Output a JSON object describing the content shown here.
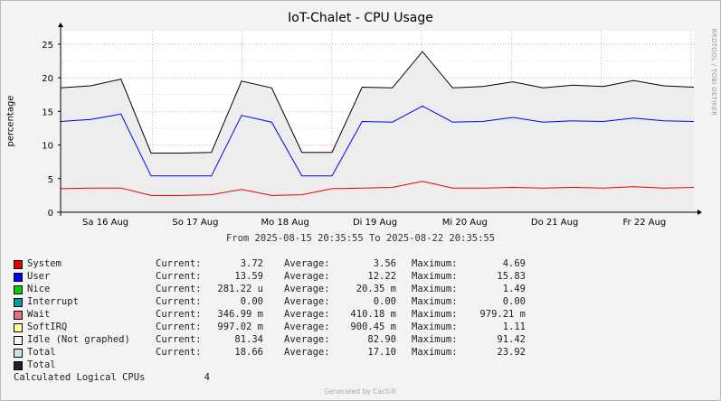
{
  "chart_data": {
    "type": "area",
    "title": "IoT-Chalet - CPU Usage",
    "ylabel": "percentage",
    "ylim": [
      0,
      27
    ],
    "yticks": [
      0,
      5,
      10,
      15,
      20,
      25
    ],
    "x_tick_labels": [
      "Sa 16 Aug",
      "So 17 Aug",
      "Mo 18 Aug",
      "Di 19 Aug",
      "Mi 20 Aug",
      "Do 21 Aug",
      "Fr 22 Aug"
    ],
    "time_range_text": "From 2025-08-15 20:35:55 To 2025-08-22 20:35:55",
    "grid": true,
    "series": [
      {
        "name": "System",
        "color": "#ea0000",
        "values": [
          3.5,
          3.6,
          3.6,
          2.5,
          2.5,
          2.6,
          3.4,
          2.5,
          2.6,
          3.5,
          3.6,
          3.7,
          4.6,
          3.6,
          3.6,
          3.7,
          3.6,
          3.7,
          3.6,
          3.8,
          3.6,
          3.7
        ]
      },
      {
        "name": "User",
        "color": "#0000ff",
        "values": [
          13.5,
          13.8,
          14.6,
          5.4,
          5.4,
          5.4,
          14.4,
          13.4,
          5.4,
          5.4,
          13.5,
          13.4,
          15.8,
          13.4,
          13.5,
          14.1,
          13.4,
          13.6,
          13.5,
          14.0,
          13.6,
          13.5
        ]
      },
      {
        "name": "Total",
        "color": "#000000",
        "values": [
          18.5,
          18.8,
          19.8,
          8.8,
          8.8,
          8.9,
          19.5,
          18.5,
          8.9,
          8.9,
          18.6,
          18.5,
          23.9,
          18.5,
          18.7,
          19.4,
          18.5,
          18.9,
          18.7,
          19.6,
          18.8,
          18.6
        ]
      }
    ],
    "x_index_range": [
      0,
      21
    ]
  },
  "legend": {
    "rows": [
      {
        "color": "#ea0000",
        "label": "System",
        "cur_label": "Current:",
        "cur": "3.72",
        "avg_label": "Average:",
        "avg": "3.56",
        "max_label": "Maximum:",
        "max": "4.69"
      },
      {
        "color": "#0000ff",
        "label": "User",
        "cur_label": "Current:",
        "cur": "13.59",
        "avg_label": "Average:",
        "avg": "12.22",
        "max_label": "Maximum:",
        "max": "15.83"
      },
      {
        "color": "#00cf00",
        "label": "Nice",
        "cur_label": "Current:",
        "cur": "281.22 u",
        "avg_label": "Average:",
        "avg": "20.35 m",
        "max_label": "Maximum:",
        "max": "1.49"
      },
      {
        "color": "#00a0a0",
        "label": "Interrupt",
        "cur_label": "Current:",
        "cur": "0.00",
        "avg_label": "Average:",
        "avg": "0.00",
        "max_label": "Maximum:",
        "max": "0.00"
      },
      {
        "color": "#e8707e",
        "label": "Wait",
        "cur_label": "Current:",
        "cur": "346.99 m",
        "avg_label": "Average:",
        "avg": "410.18 m",
        "max_label": "Maximum:",
        "max": "979.21 m"
      },
      {
        "color": "#ffff99",
        "label": "SoftIRQ",
        "cur_label": "Current:",
        "cur": "997.02 m",
        "avg_label": "Average:",
        "avg": "900.45 m",
        "max_label": "Maximum:",
        "max": "1.11"
      },
      {
        "color": "#f2f2f2",
        "label": "Idle (Not graphed)",
        "cur_label": "Current:",
        "cur": "81.34",
        "avg_label": "Average:",
        "avg": "82.90",
        "max_label": "Maximum:",
        "max": "91.42"
      },
      {
        "color": "#c8e6e6",
        "label": "Total",
        "cur_label": "Current:",
        "cur": "18.66",
        "avg_label": "Average:",
        "avg": "17.10",
        "max_label": "Maximum:",
        "max": "23.92"
      },
      {
        "color": "#222222",
        "label": "Total"
      }
    ],
    "cpus_label": "Calculated Logical CPUs",
    "cpus_value": "4"
  },
  "side_text": "RRDTOOL / TOBI OETIKER",
  "footer": "Generated by Cacti®"
}
